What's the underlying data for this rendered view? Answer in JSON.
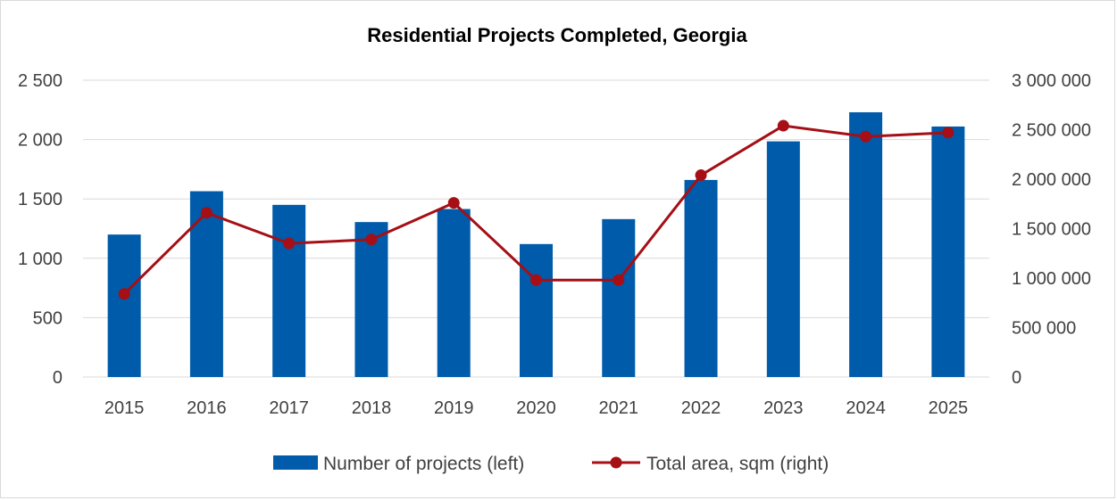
{
  "chart_data": {
    "type": "bar+line",
    "title": "Residential Projects Completed, Georgia",
    "categories": [
      "2015",
      "2016",
      "2017",
      "2018",
      "2019",
      "2020",
      "2021",
      "2022",
      "2023",
      "2024",
      "2025"
    ],
    "series": [
      {
        "name": "Number of projects (left)",
        "type": "bar",
        "axis": "left",
        "color": "#005BAA",
        "values": [
          1200,
          1565,
          1450,
          1305,
          1415,
          1120,
          1330,
          1660,
          1985,
          2230,
          2110
        ]
      },
      {
        "name": "Total area, sqm (right)",
        "type": "line",
        "axis": "right",
        "color": "#A50F15",
        "values": [
          840000,
          1660000,
          1350000,
          1390000,
          1760000,
          980000,
          980000,
          2040000,
          2540000,
          2430000,
          2470000
        ]
      }
    ],
    "y_left": {
      "min": 0,
      "max": 2500,
      "ticks": [
        "0",
        "500",
        "1 000",
        "1 500",
        "2 000",
        "2 500"
      ]
    },
    "y_right": {
      "min": 0,
      "max": 3000000,
      "ticks": [
        "0",
        "500 000",
        "1 000 000",
        "1 500 000",
        "2 000 000",
        "2 500 000",
        "3 000 000"
      ]
    },
    "grid": true,
    "legend": "bottom"
  }
}
